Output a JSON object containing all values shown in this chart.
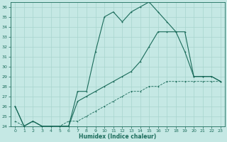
{
  "xlabel": "Humidex (Indice chaleur)",
  "ylabel": "",
  "xlim": [
    -0.5,
    23.5
  ],
  "ylim": [
    24,
    36.5
  ],
  "background_color": "#c5e8e4",
  "grid_color": "#a8d4ce",
  "line_color": "#1a6b5a",
  "line1_x": [
    0,
    1,
    2,
    3,
    4,
    5,
    6,
    7,
    8,
    9,
    10,
    11,
    12,
    13,
    14,
    15,
    16,
    17,
    18,
    19,
    20,
    21,
    22,
    23
  ],
  "line1_y": [
    26,
    24,
    24.5,
    24,
    24,
    24,
    24,
    27.5,
    27.5,
    31.5,
    35,
    35.5,
    34.5,
    35.5,
    36,
    36.5,
    35.5,
    34.5,
    33.5,
    33.5,
    29,
    29,
    29,
    28.5
  ],
  "line2_x": [
    0,
    1,
    2,
    3,
    4,
    5,
    6,
    7,
    8,
    9,
    10,
    11,
    12,
    13,
    14,
    15,
    16,
    17,
    18,
    19,
    20,
    21,
    22,
    23
  ],
  "line2_y": [
    26,
    24,
    24.5,
    24,
    24,
    24,
    24,
    26.5,
    27,
    27.5,
    28,
    28.5,
    29,
    29.5,
    30.5,
    32,
    33.5,
    33.5,
    33.5,
    31.5,
    29,
    29,
    29,
    28.5
  ],
  "line3_x": [
    0,
    1,
    2,
    3,
    4,
    5,
    6,
    7,
    8,
    9,
    10,
    11,
    12,
    13,
    14,
    15,
    16,
    17,
    18,
    19,
    20,
    21,
    22,
    23
  ],
  "line3_y": [
    24.5,
    24,
    24.5,
    24,
    24,
    24,
    24.5,
    24.5,
    25,
    25.5,
    26,
    26.5,
    27,
    27.5,
    27.5,
    28,
    28,
    28.5,
    28.5,
    28.5,
    28.5,
    28.5,
    28.5,
    28.5
  ],
  "yticks": [
    24,
    25,
    26,
    27,
    28,
    29,
    30,
    31,
    32,
    33,
    34,
    35,
    36
  ],
  "xticks": [
    0,
    1,
    2,
    3,
    4,
    5,
    6,
    7,
    8,
    9,
    10,
    11,
    12,
    13,
    14,
    15,
    16,
    17,
    18,
    19,
    20,
    21,
    22,
    23
  ]
}
